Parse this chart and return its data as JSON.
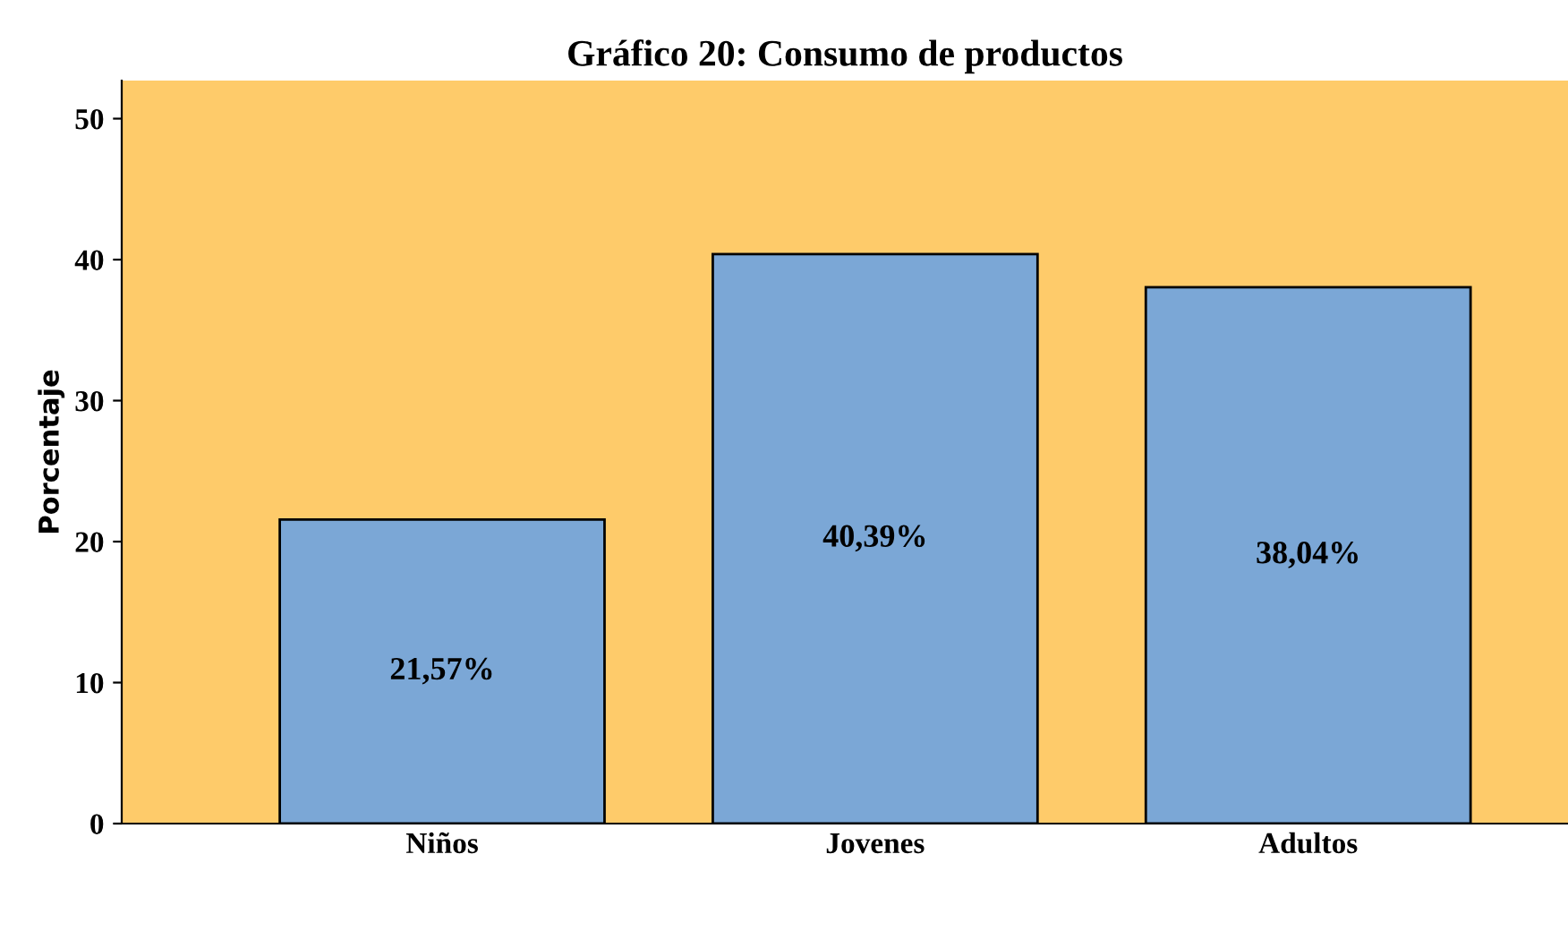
{
  "chart_data": {
    "type": "bar",
    "title": "Gráfico 20: Consumo de productos",
    "ylabel": "Porcentaje",
    "categories": [
      "Niños",
      "Jovenes",
      "Adultos"
    ],
    "values": [
      21.57,
      40.39,
      38.04
    ],
    "value_labels": [
      "21,57%",
      "40,39%",
      "38,04%"
    ],
    "color": "#7ba7d6",
    "ylim": [
      0,
      52.7
    ],
    "yticks": [
      0,
      10,
      20,
      30,
      40,
      50
    ],
    "grid": false,
    "legend": false
  }
}
